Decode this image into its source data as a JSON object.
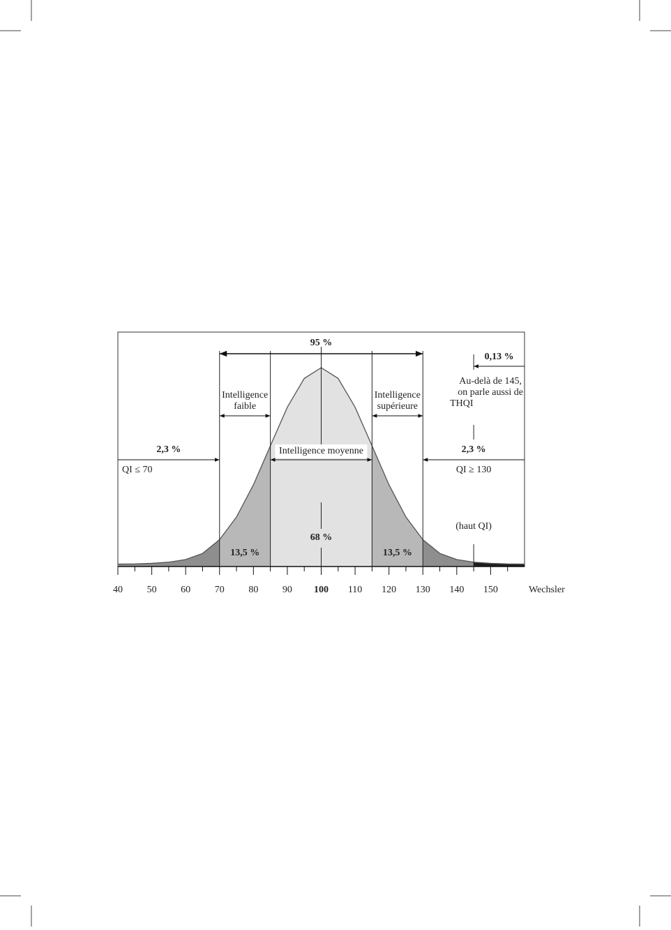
{
  "chart_data": {
    "type": "area",
    "x": [
      40,
      45,
      50,
      55,
      60,
      65,
      70,
      75,
      80,
      85,
      90,
      95,
      100,
      105,
      110,
      115,
      120,
      125,
      130,
      135,
      140,
      145,
      150,
      155,
      160
    ],
    "values": [
      0.012,
      0.013,
      0.016,
      0.022,
      0.035,
      0.066,
      0.135,
      0.249,
      0.411,
      0.607,
      0.801,
      0.946,
      1,
      0.946,
      0.801,
      0.607,
      0.411,
      0.249,
      0.135,
      0.066,
      0.035,
      0.022,
      0.016,
      0.013,
      0.012
    ],
    "xlim": [
      40,
      160
    ],
    "ylim": [
      0,
      1
    ],
    "xticks": [
      40,
      50,
      60,
      70,
      80,
      90,
      100,
      110,
      120,
      130,
      140,
      150
    ],
    "xticks_minor": [
      45,
      55,
      65,
      75,
      85,
      95,
      105,
      115,
      125,
      135,
      145,
      155
    ],
    "xlabel": "Wechsler",
    "line_color": "#555555",
    "regions": [
      {
        "from": 40,
        "to": 70,
        "color": "#8e8e8e"
      },
      {
        "from": 70,
        "to": 85,
        "color": "#b8b8b8",
        "label": "13,5 %"
      },
      {
        "from": 85,
        "to": 115,
        "color": "#e2e2e2",
        "label": "68 %"
      },
      {
        "from": 115,
        "to": 130,
        "color": "#b8b8b8",
        "label": "13,5 %"
      },
      {
        "from": 130,
        "to": 145,
        "color": "#8e8e8e"
      },
      {
        "from": 145,
        "to": 160,
        "color": "#1e1e1e"
      }
    ],
    "spans": [
      {
        "label": [
          "95 %"
        ],
        "from": 70,
        "to": 130,
        "heads": "both"
      },
      {
        "label": [
          "Intelligence",
          "faible"
        ],
        "from": 70,
        "to": 85,
        "heads": "both"
      },
      {
        "label": [
          "Intelligence",
          "supérieure"
        ],
        "from": 115,
        "to": 130,
        "heads": "both"
      },
      {
        "label": [
          "Intelligence moyenne"
        ],
        "from": 85,
        "to": 115,
        "heads": "both"
      },
      {
        "label": [
          "2,3 %"
        ],
        "sublabel": "QI ≤ 70",
        "from": 40,
        "to": 70,
        "heads": "to"
      },
      {
        "label": [
          "2,3 %"
        ],
        "sublabel": "QI ≥ 130",
        "from": 160,
        "to": 130,
        "heads": "to"
      },
      {
        "label": [
          "0,13 %"
        ],
        "from": 160,
        "to": 145,
        "heads": "to"
      }
    ],
    "note": [
      "Au-delà de 145,",
      "on parle aussi de",
      "THQI"
    ],
    "high_label": "(haut QI)"
  }
}
